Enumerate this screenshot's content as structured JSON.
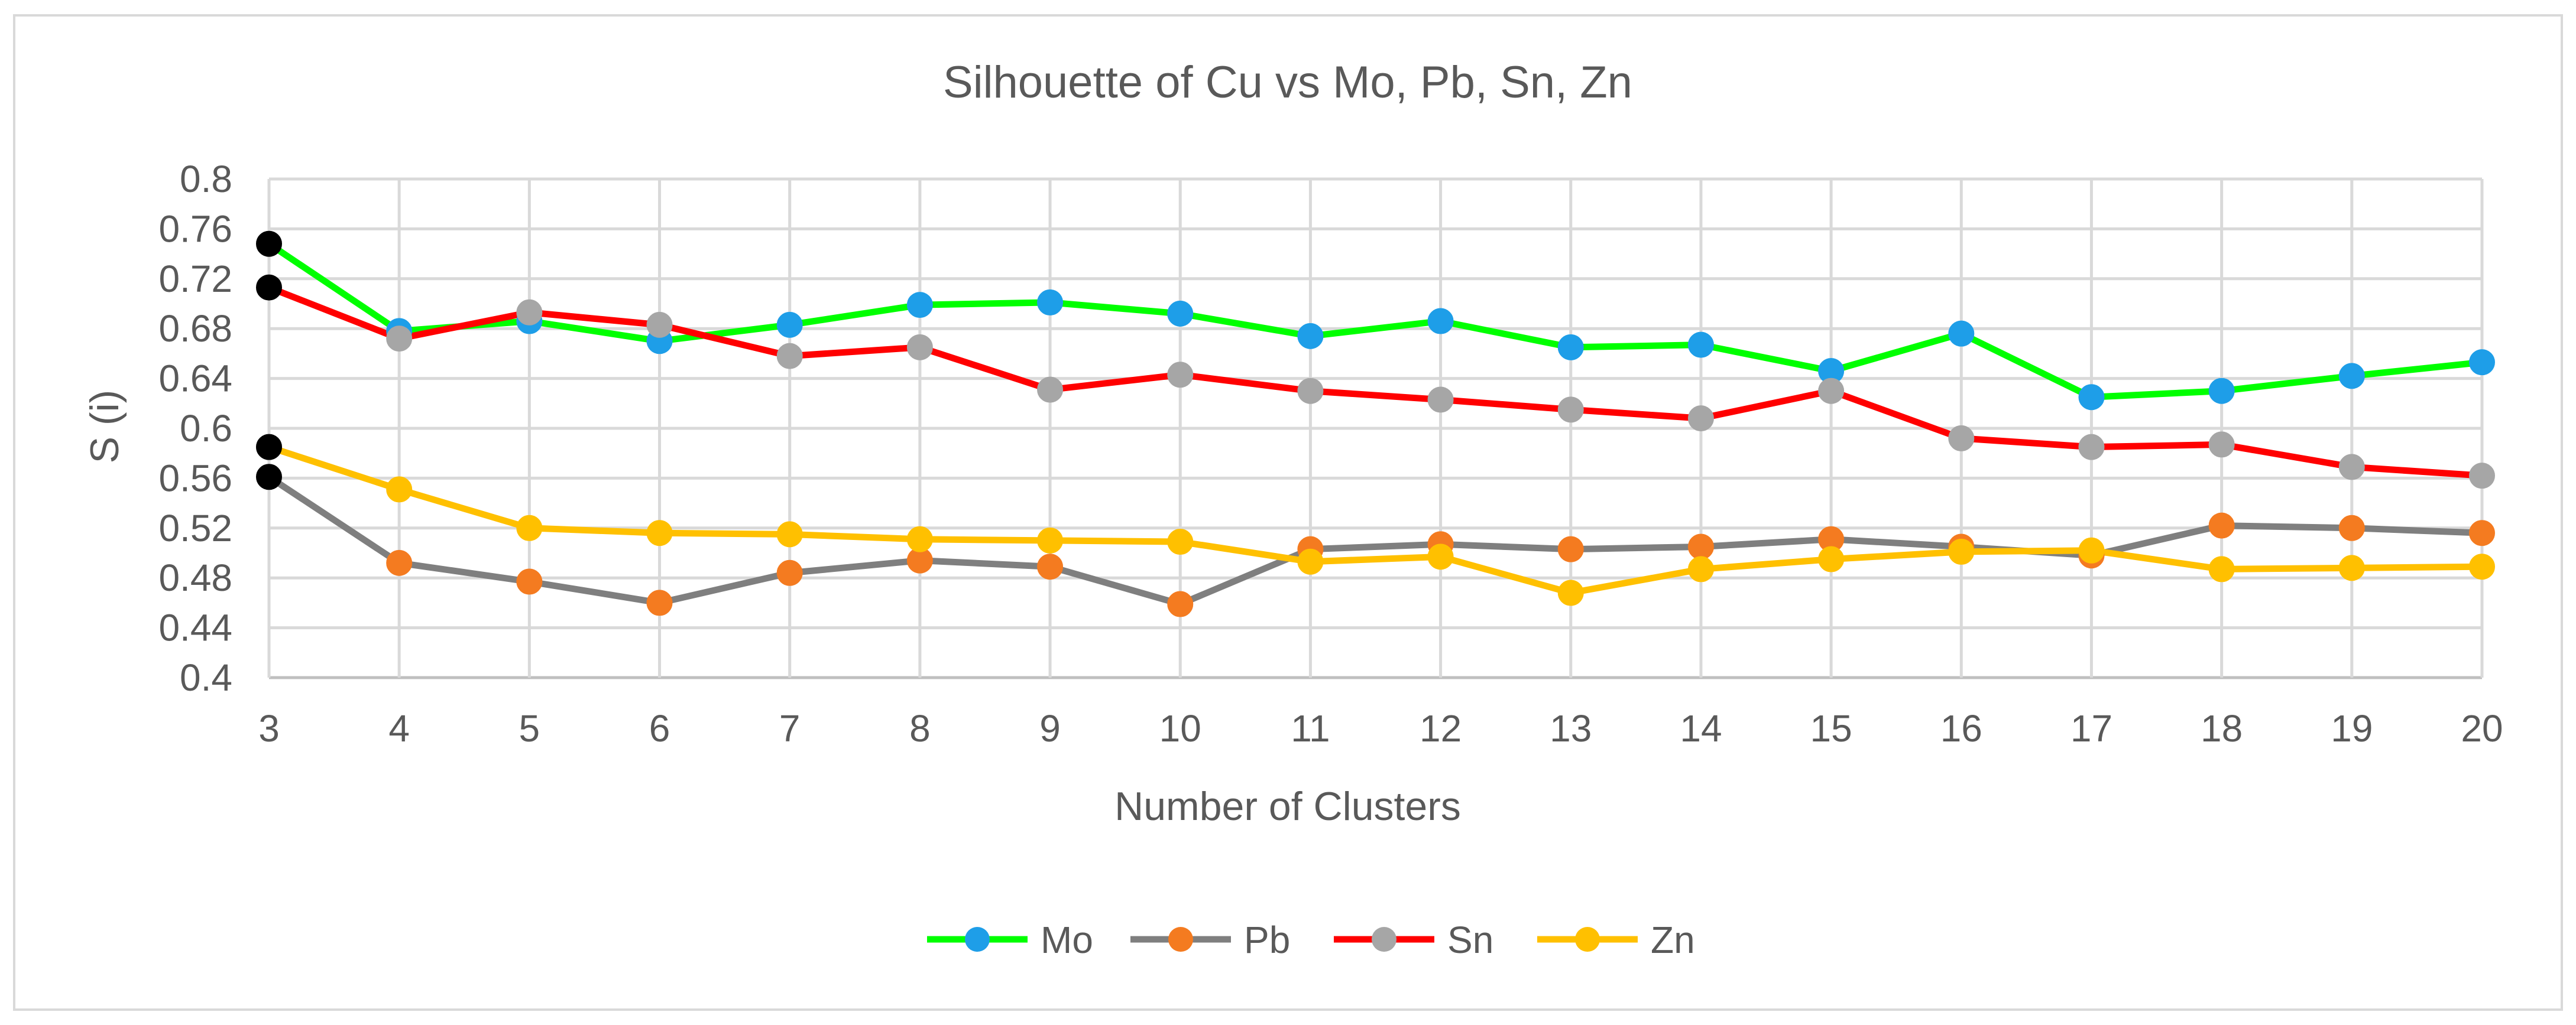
{
  "chart_data": {
    "type": "line",
    "title": "Silhouette of Cu vs Mo, Pb, Sn, Zn",
    "xlabel": "Number of Clusters",
    "ylabel": "S (i)",
    "x": [
      3,
      4,
      5,
      6,
      7,
      8,
      9,
      10,
      11,
      12,
      13,
      14,
      15,
      16,
      17,
      18,
      19,
      20
    ],
    "x_tick_labels": [
      "3",
      "4",
      "5",
      "6",
      "7",
      "8",
      "9",
      "10",
      "11",
      "12",
      "13",
      "14",
      "15",
      "16",
      "17",
      "18",
      "19",
      "20"
    ],
    "ylim": [
      0.4,
      0.8
    ],
    "y_ticks": [
      0.4,
      0.44,
      0.48,
      0.52,
      0.56,
      0.6,
      0.64,
      0.68,
      0.72,
      0.76,
      0.8
    ],
    "y_tick_labels": [
      "0.4",
      "0.44",
      "0.48",
      "0.52",
      "0.56",
      "0.6",
      "0.64",
      "0.68",
      "0.72",
      "0.76",
      "0.8"
    ],
    "grid": true,
    "legend_position": "bottom",
    "first_point_marker_color": "#000000",
    "series": [
      {
        "name": "Mo",
        "line_color": "#00ff00",
        "marker_color": "#1e9ee8",
        "values": [
          0.748,
          0.678,
          0.686,
          0.67,
          0.683,
          0.699,
          0.701,
          0.692,
          0.674,
          0.686,
          0.665,
          0.667,
          0.646,
          0.676,
          0.625,
          0.63,
          0.642,
          0.653
        ]
      },
      {
        "name": "Pb",
        "line_color": "#7f7f7f",
        "marker_color": "#f47b20",
        "values": [
          0.561,
          0.492,
          0.477,
          0.46,
          0.484,
          0.494,
          0.489,
          0.459,
          0.503,
          0.507,
          0.503,
          0.505,
          0.511,
          0.505,
          0.498,
          0.522,
          0.52,
          0.516
        ]
      },
      {
        "name": "Sn",
        "line_color": "#ff0000",
        "marker_color": "#a6a6a6",
        "values": [
          0.713,
          0.672,
          0.693,
          0.683,
          0.658,
          0.665,
          0.631,
          0.643,
          0.63,
          0.623,
          0.615,
          0.608,
          0.63,
          0.592,
          0.585,
          0.587,
          0.569,
          0.562
        ]
      },
      {
        "name": "Zn",
        "line_color": "#ffc000",
        "marker_color": "#ffc000",
        "values": [
          0.585,
          0.551,
          0.52,
          0.516,
          0.515,
          0.511,
          0.51,
          0.509,
          0.493,
          0.497,
          0.468,
          0.487,
          0.495,
          0.501,
          0.502,
          0.487,
          0.488,
          0.489
        ]
      }
    ]
  }
}
